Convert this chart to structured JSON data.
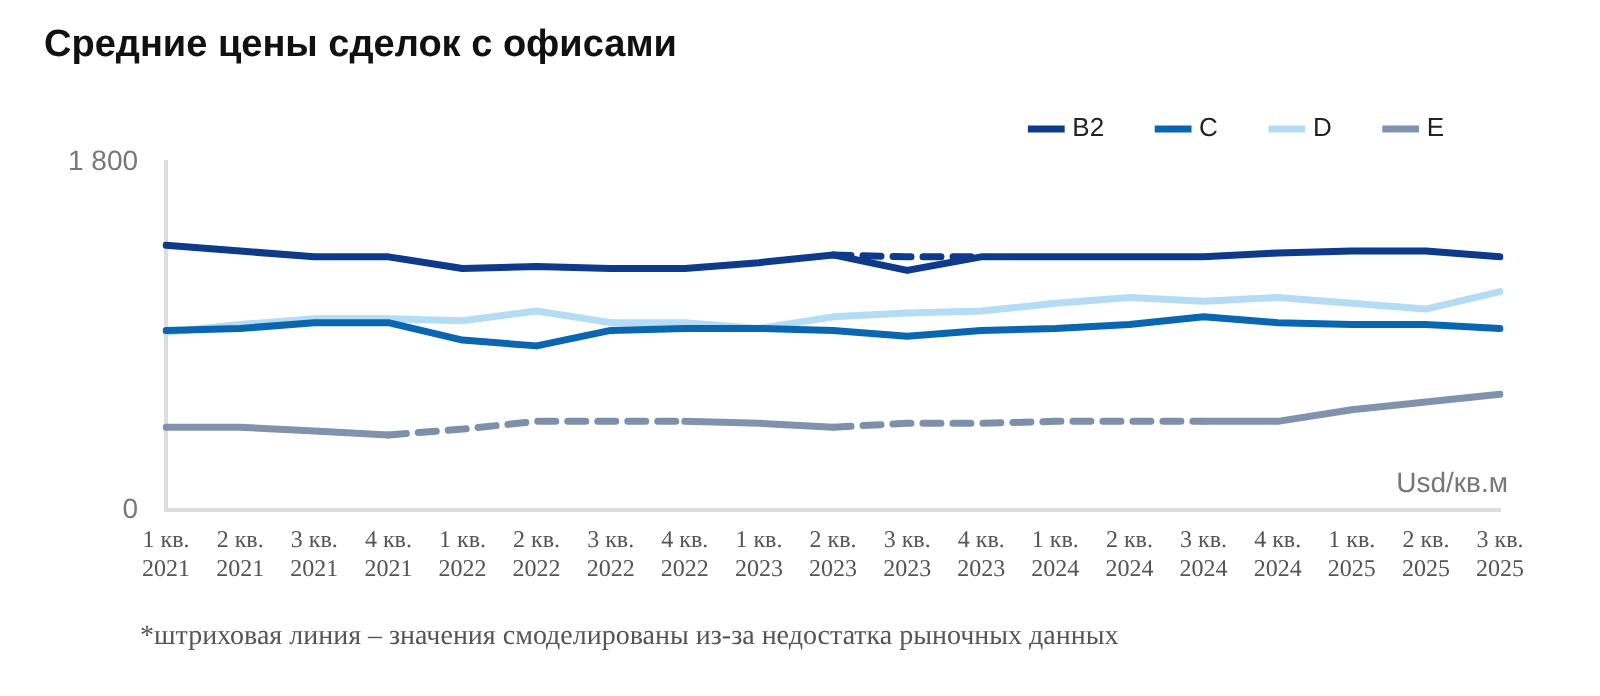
{
  "chart_data": {
    "type": "line",
    "title": "Средние цены сделок с офисами",
    "ylabel": "Usd/кв.м",
    "categories": [
      "1 кв. 2021",
      "2 кв. 2021",
      "3 кв. 2021",
      "4 кв. 2021",
      "1 кв. 2022",
      "2 кв. 2022",
      "3 кв. 2022",
      "4 кв. 2022",
      "1 кв. 2023",
      "2 кв. 2023",
      "3 кв. 2023",
      "4 кв. 2023",
      "1 кв. 2024",
      "2 кв. 2024",
      "3 кв. 2024",
      "4 кв. 2024",
      "1 кв. 2025",
      "2 кв. 2025",
      "3 кв. 2025"
    ],
    "series": [
      {
        "name": "B2",
        "color": "#0d3a8a",
        "line_style": "solid",
        "values": [
          1370,
          1340,
          1310,
          1310,
          1250,
          1260,
          1250,
          1250,
          1280,
          1320,
          1240,
          1310,
          1310,
          1310,
          1310,
          1330,
          1340,
          1340,
          1310
        ]
      },
      {
        "name": "C",
        "color": "#0a66b0",
        "line_style": "solid",
        "values": [
          930,
          940,
          970,
          970,
          880,
          850,
          930,
          940,
          940,
          930,
          900,
          930,
          940,
          960,
          1000,
          970,
          960,
          960,
          940
        ]
      },
      {
        "name": "D",
        "color": "#b5dcf5",
        "line_style": "solid",
        "values": [
          920,
          960,
          990,
          990,
          980,
          1030,
          970,
          970,
          940,
          1000,
          1020,
          1030,
          1070,
          1100,
          1080,
          1100,
          1070,
          1040,
          1130
        ]
      },
      {
        "name": "E",
        "color": "#8092ad",
        "line_style": "solid",
        "values": [
          430,
          430,
          410,
          390,
          null,
          null,
          null,
          460,
          450,
          430,
          null,
          null,
          null,
          null,
          460,
          460,
          520,
          560,
          600
        ]
      },
      {
        "color": "#0d3a8a",
        "line_style": "dashed",
        "values": [
          null,
          null,
          null,
          null,
          null,
          null,
          null,
          null,
          null,
          1320,
          1310,
          1310,
          null,
          null,
          null,
          null,
          null,
          null,
          null
        ]
      },
      {
        "color": "#7d8faa",
        "line_style": "dashed",
        "values": [
          null,
          null,
          null,
          390,
          420,
          460,
          460,
          460,
          null,
          430,
          450,
          450,
          460,
          460,
          460,
          null,
          null,
          null,
          null
        ]
      }
    ],
    "ylim": [
      0,
      1800
    ],
    "yticks": [
      0,
      {
        "value": 1800,
        "label": "1 800"
      }
    ],
    "grid": false,
    "legend": "top right",
    "marker": "none",
    "annotations": [
      "*штриховая линия – значения смоделированы из-за недостатка рыночных данных"
    ]
  }
}
